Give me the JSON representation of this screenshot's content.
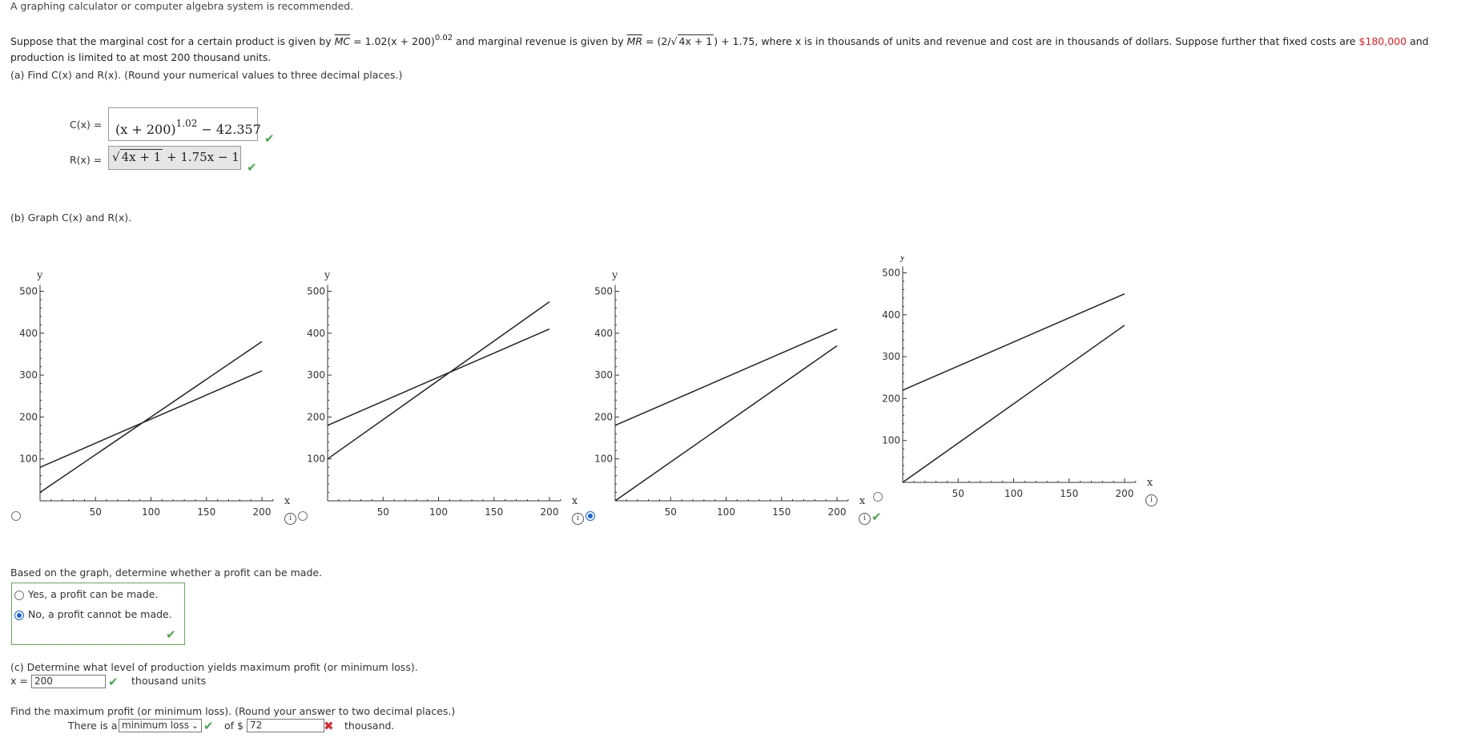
{
  "hint": "A graphing calculator or computer algebra system is recommended.",
  "problem": {
    "p1": "Suppose that the marginal cost for a certain product is given by",
    "mc": "MC",
    "mc_expr_a": " = 1.02(x + 200)",
    "mc_exp": "0.02",
    "p2": " and marginal revenue is given by",
    "mr": "MR",
    "mr_expr_a": " = (2/",
    "mr_rad": "4x + 1",
    "mr_expr_b": ") + 1.75, where x is in thousands of units and revenue and cost are in thousands of dollars. Suppose further that fixed costs are",
    "fixed": "$180,000",
    "p3": " and production is limited to at most 200 thousand units."
  },
  "part_a": {
    "label": "(a) Find C(x) and R(x). (Round your numerical values to three decimal places.)",
    "c_label": "C(x) =",
    "c_base": "(x + 200)",
    "c_exp": "1.02",
    "c_tail": " − 42.357",
    "r_label": "R(x) =",
    "r_rad": "4x + 1",
    "r_tail": " + 1.75x − 1"
  },
  "part_b": {
    "label": "(b) Graph C(x) and R(x).",
    "axis_y": "y",
    "axis_x": "x",
    "info": "i",
    "question": "Based on the graph, determine whether a profit can be made.",
    "opt_yes": "Yes, a profit can be made.",
    "opt_no": "No, a profit cannot be made.",
    "selected_graph": 3
  },
  "chart_data": [
    {
      "type": "line",
      "xlim": [
        0,
        210
      ],
      "ylim": [
        0,
        500
      ],
      "xticks": [
        50,
        100,
        150,
        200
      ],
      "yticks": [
        100,
        200,
        300,
        400,
        500
      ],
      "series": [
        {
          "x": [
            0,
            200
          ],
          "y": [
            20,
            380
          ]
        },
        {
          "x": [
            0,
            200
          ],
          "y": [
            80,
            310
          ]
        }
      ]
    },
    {
      "type": "line",
      "xlim": [
        0,
        210
      ],
      "ylim": [
        0,
        500
      ],
      "xticks": [
        50,
        100,
        150,
        200
      ],
      "yticks": [
        100,
        200,
        300,
        400,
        500
      ],
      "series": [
        {
          "x": [
            0,
            200
          ],
          "y": [
            100,
            475
          ]
        },
        {
          "x": [
            0,
            200
          ],
          "y": [
            180,
            410
          ]
        }
      ]
    },
    {
      "type": "line",
      "xlim": [
        0,
        210
      ],
      "ylim": [
        0,
        500
      ],
      "xticks": [
        50,
        100,
        150,
        200
      ],
      "yticks": [
        100,
        200,
        300,
        400,
        500
      ],
      "series": [
        {
          "x": [
            0,
            200
          ],
          "y": [
            180,
            410
          ]
        },
        {
          "x": [
            0,
            200
          ],
          "y": [
            0,
            370
          ]
        }
      ]
    },
    {
      "type": "line",
      "xlim": [
        0,
        210
      ],
      "ylim": [
        0,
        500
      ],
      "xticks": [
        50,
        100,
        150,
        200
      ],
      "yticks": [
        100,
        200,
        300,
        400,
        500
      ],
      "series": [
        {
          "x": [
            0,
            200
          ],
          "y": [
            220,
            450
          ]
        },
        {
          "x": [
            0,
            200
          ],
          "y": [
            0,
            375
          ]
        }
      ]
    }
  ],
  "part_c": {
    "label": "(c) Determine what level of production yields maximum profit (or minimum loss).",
    "x_label": "x =",
    "x_value": "200",
    "x_unit": "thousand units",
    "find_label": "Find the maximum profit (or minimum loss). (Round your answer to two decimal places.)",
    "there_is": "There is a",
    "select_value": "minimum loss",
    "of": "of $",
    "amount": "72",
    "unit": "thousand."
  }
}
